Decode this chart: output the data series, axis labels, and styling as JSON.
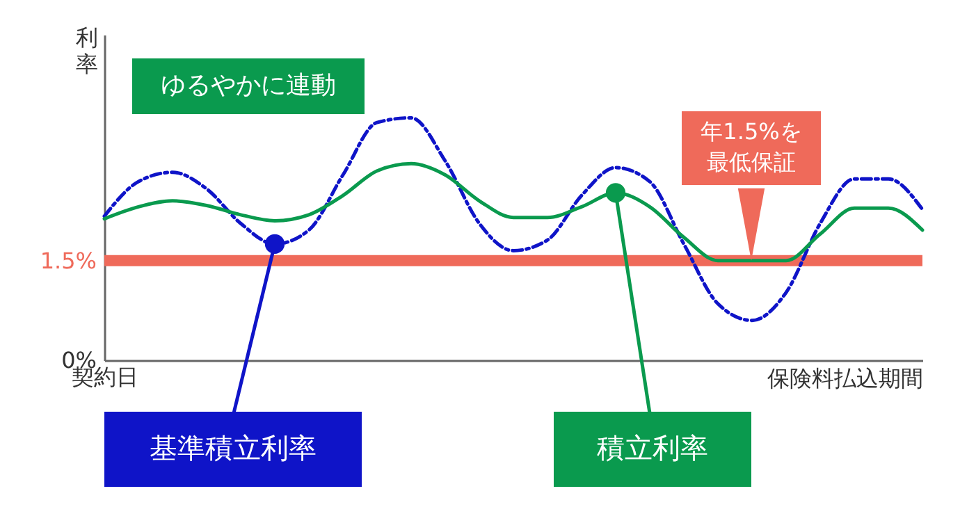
{
  "chart_data": {
    "type": "line",
    "xlabel": "保険料払込期間",
    "ylabel": "利率",
    "categories": [
      "契約日",
      null,
      null,
      null,
      null,
      null,
      null,
      null,
      null,
      null,
      null,
      null,
      null,
      null,
      null,
      null,
      null,
      null,
      null,
      null,
      null,
      null,
      null,
      null,
      null
    ],
    "series": [
      {
        "name": "基準積立利率",
        "color": "#0f14c8",
        "line_style": "dashed",
        "values": [
          2.17,
          2.69,
          2.83,
          2.58,
          2.06,
          1.75,
          1.96,
          2.79,
          3.58,
          3.65,
          3.0,
          2.06,
          1.65,
          1.81,
          2.48,
          2.9,
          2.69,
          1.75,
          0.85,
          0.6,
          1.02,
          2.06,
          2.73,
          2.73,
          2.27
        ]
      },
      {
        "name": "積立利率",
        "color": "#0a9a4e",
        "line_style": "solid",
        "values": [
          2.13,
          2.31,
          2.4,
          2.33,
          2.19,
          2.1,
          2.19,
          2.48,
          2.85,
          2.96,
          2.79,
          2.4,
          2.15,
          2.15,
          2.31,
          2.52,
          2.31,
          1.85,
          1.5,
          1.5,
          1.5,
          1.9,
          2.29,
          2.29,
          1.96
        ]
      }
    ],
    "ylim": [
      0,
      4.9
    ],
    "yticks": [
      {
        "value": 0,
        "label": "0%"
      },
      {
        "value": 1.5,
        "label": "1.5%"
      }
    ],
    "ref_lines": [
      {
        "axis": "y",
        "value": 1.5,
        "color": "#ef6a5a"
      }
    ],
    "annotations": [
      "ゆるやかに連動",
      {
        "text": "年1.5%を最低保証",
        "y": 1.5
      }
    ],
    "grid": false,
    "legend": false,
    "marker": "none"
  }
}
